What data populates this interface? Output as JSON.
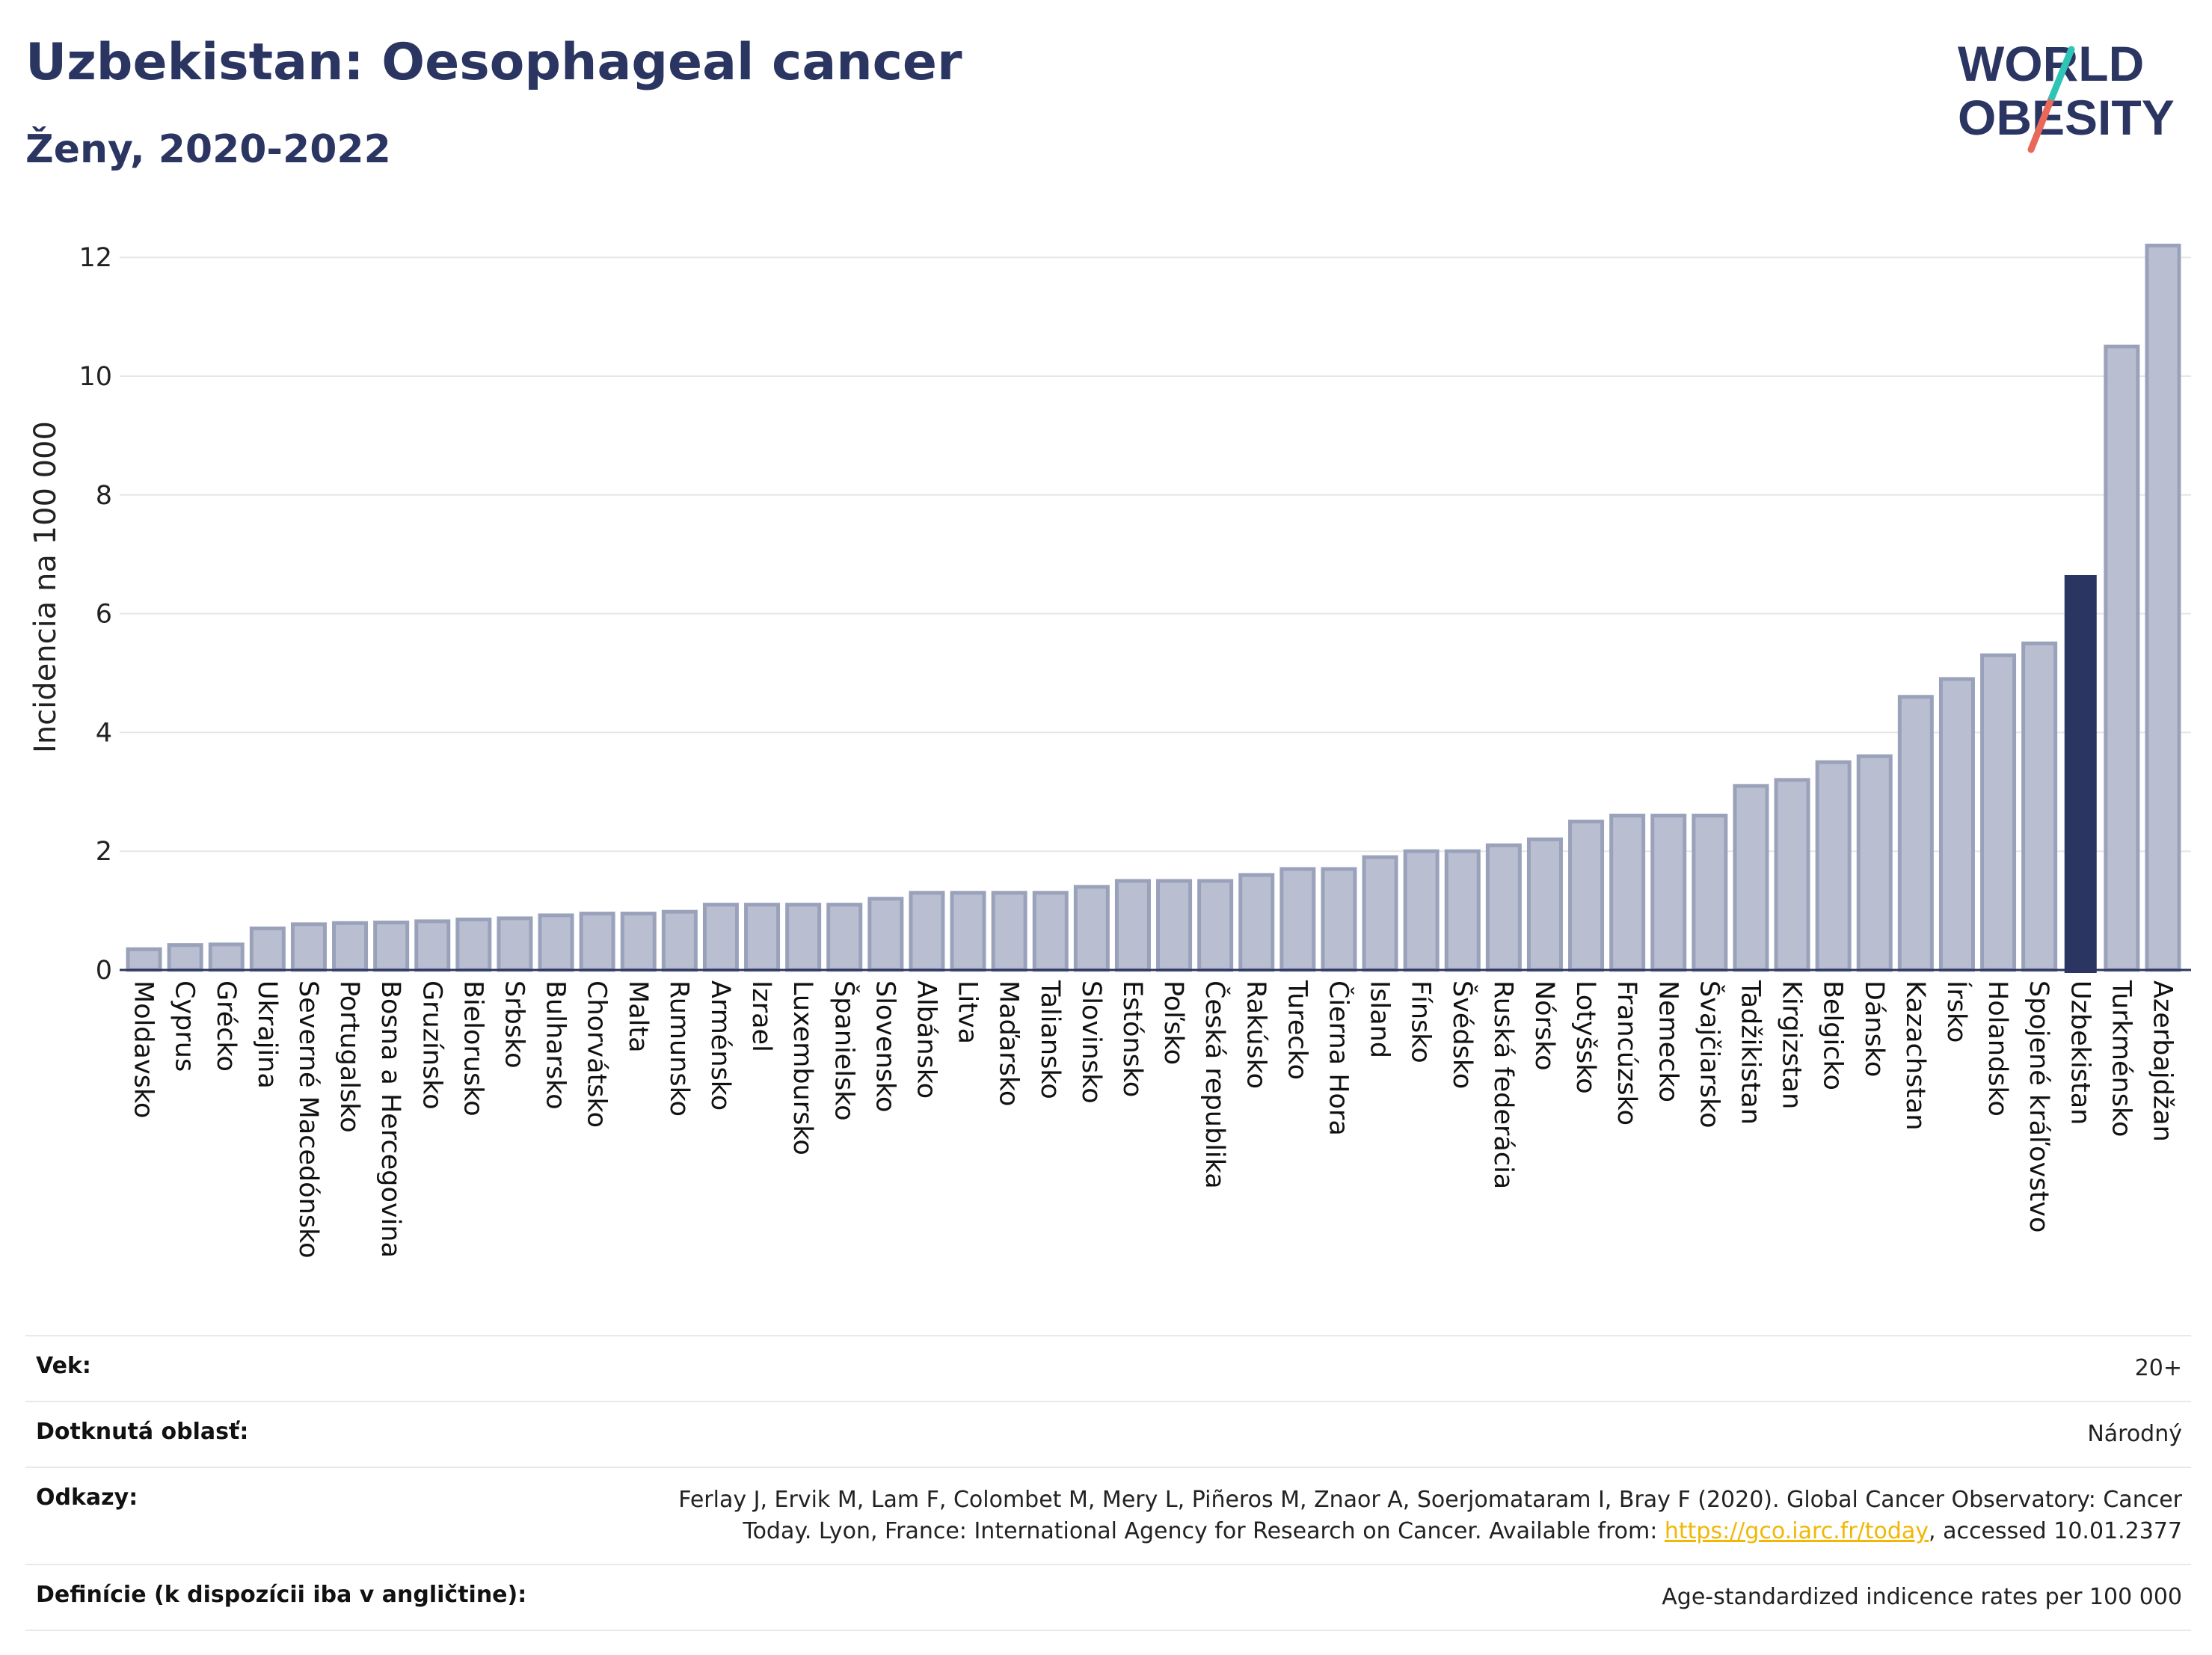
{
  "header": {
    "title": "Uzbekistan: Oesophageal cancer",
    "subtitle": "Ženy, 2020-2022"
  },
  "logo": {
    "line1": "WORLD",
    "line2": "OBESITY",
    "colors": {
      "text": "#2b3561",
      "slash_top": "#2ec4b6",
      "slash_bottom": "#e8685a"
    }
  },
  "chart_data": {
    "type": "bar",
    "ylabel": "Incidencia na 100 000",
    "ylim": [
      0,
      12.5
    ],
    "yticks": [
      0,
      2,
      4,
      6,
      8,
      10,
      12
    ],
    "grid": true,
    "highlight": "Uzbekistan",
    "colors": {
      "bar": "#b9bfd0",
      "bar_edge": "#9aa2bb",
      "highlight": "#2b3561"
    },
    "categories": [
      "Moldavsko",
      "Cyprus",
      "Grécko",
      "Ukrajina",
      "Severné Macedónsko",
      "Portugalsko",
      "Bosna a Hercegovina",
      "Gruzínsko",
      "Bielorusko",
      "Srbsko",
      "Bulharsko",
      "Chorvátsko",
      "Malta",
      "Rumunsko",
      "Arménsko",
      "Izrael",
      "Luxembursko",
      "Španielsko",
      "Slovensko",
      "Albánsko",
      "Litva",
      "Maďarsko",
      "Taliansko",
      "Slovinsko",
      "Estónsko",
      "Poľsko",
      "Česká republika",
      "Rakúsko",
      "Turecko",
      "Čierna Hora",
      "Island",
      "Fínsko",
      "Švédsko",
      "Ruská federácia",
      "Nórsko",
      "Lotyšsko",
      "Francúzsko",
      "Nemecko",
      "Švajčiarsko",
      "Tadžikistan",
      "Kirgizstan",
      "Belgicko",
      "Dánsko",
      "Kazachstan",
      "Írsko",
      "Holandsko",
      "Spojené kráľovstvo",
      "Uzbekistan",
      "Turkménsko",
      "Azerbajdžan"
    ],
    "values": [
      0.35,
      0.42,
      0.43,
      0.7,
      0.77,
      0.79,
      0.8,
      0.82,
      0.85,
      0.87,
      0.92,
      0.95,
      0.95,
      0.98,
      1.1,
      1.1,
      1.1,
      1.1,
      1.2,
      1.3,
      1.3,
      1.3,
      1.3,
      1.4,
      1.5,
      1.5,
      1.5,
      1.6,
      1.7,
      1.7,
      1.9,
      2.0,
      2.0,
      2.1,
      2.2,
      2.5,
      2.6,
      2.6,
      2.6,
      3.1,
      3.2,
      3.5,
      3.6,
      4.6,
      4.9,
      5.3,
      5.5,
      6.65,
      10.5,
      12.2
    ]
  },
  "info": {
    "rows": [
      {
        "label": "Vek:",
        "value": "20+"
      },
      {
        "label": "Dotknutá oblasť:",
        "value": "Národný"
      },
      {
        "label": "Odkazy:",
        "value_pre": "Ferlay J, Ervik M, Lam F, Colombet M, Mery L, Piñeros M, Znaor A, Soerjomataram I, Bray F (2020). Global Cancer Observatory: Cancer Today. Lyon, France: International Agency for Research on Cancer. Available from: ",
        "link": "https://gco.iarc.fr/today",
        "value_post": ", accessed 10.01.2377"
      },
      {
        "label": "Definície (k dispozícii iba v angličtine):",
        "value": "Age-standardized indicence rates per 100 000"
      }
    ]
  }
}
